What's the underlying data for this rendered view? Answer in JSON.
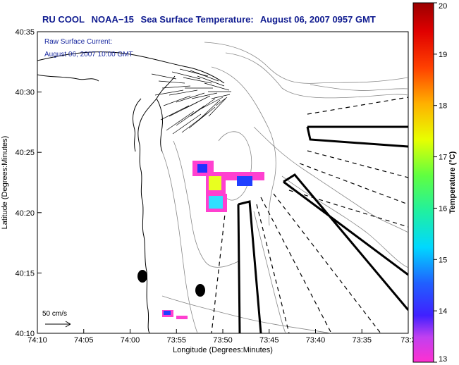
{
  "title": {
    "org": "RU COOL",
    "satellite": "NOAA−15",
    "product": "Sea Surface Temperature:",
    "datetime": "August 06, 2007 0957 GMT"
  },
  "annotation": {
    "line1": "Raw Surface Current:",
    "line2": "August 06, 2007 10:00 GMT"
  },
  "scale_label": "50 cm/s",
  "x_axis": {
    "label": "Longitude (Degrees:Minutes)",
    "ticks": [
      "74:10",
      "74:05",
      "74:00",
      "73:55",
      "73:50",
      "73:45",
      "73:40",
      "73:35",
      "73:3"
    ]
  },
  "y_axis": {
    "label": "Latitude (Degrees:Minutes)",
    "ticks": [
      "40:35",
      "40:30",
      "40:25",
      "40:20",
      "40:15",
      "40:10"
    ]
  },
  "colorbar": {
    "label": "Temperature (°C)",
    "ticks": [
      "20",
      "19",
      "18",
      "17",
      "16",
      "15",
      "14",
      "13"
    ],
    "range": [
      13,
      20
    ]
  },
  "colors": {
    "title": "#101c90",
    "annotation": "#1a2aa0"
  }
}
